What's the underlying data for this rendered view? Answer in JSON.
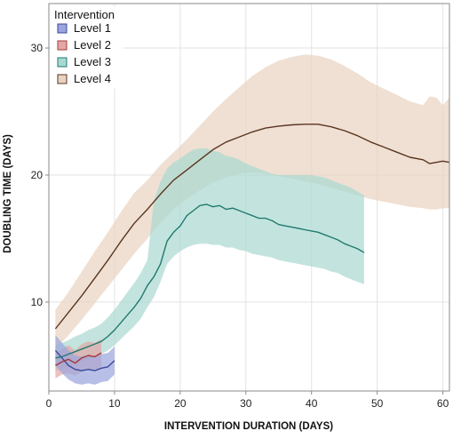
{
  "chart_data": {
    "type": "line",
    "title": "",
    "xlabel": "INTERVENTION DURATION (DAYS)",
    "ylabel": "DOUBLING TIME (DAYS)",
    "xlim": [
      0,
      61
    ],
    "ylim": [
      3,
      33.5
    ],
    "x_ticks": [
      0,
      10,
      20,
      30,
      40,
      50,
      60
    ],
    "y_ticks": [
      10,
      20,
      30
    ],
    "grid": true,
    "legend": {
      "title": "Intervention",
      "placement": "top-left"
    },
    "series": [
      {
        "name": "Level 1",
        "color": "#3b4a9a",
        "band_color": "#9aa4dd",
        "x": [
          1,
          2,
          3,
          4,
          5,
          6,
          7,
          8,
          9,
          10
        ],
        "y": [
          6.2,
          5.6,
          5.0,
          4.7,
          4.6,
          4.7,
          4.6,
          4.8,
          4.9,
          5.4
        ],
        "lower": [
          5.0,
          4.4,
          3.9,
          3.6,
          3.5,
          3.6,
          3.5,
          3.7,
          3.8,
          4.3
        ],
        "upper": [
          7.4,
          6.8,
          6.2,
          5.8,
          5.7,
          5.8,
          5.7,
          5.9,
          6.0,
          6.5
        ]
      },
      {
        "name": "Level 2",
        "color": "#a43a3a",
        "band_color": "#e3a7a7",
        "x": [
          1,
          2,
          3,
          4,
          5,
          6,
          7,
          8
        ],
        "y": [
          5.0,
          5.3,
          5.5,
          5.2,
          5.6,
          5.8,
          5.7,
          6.0
        ],
        "lower": [
          4.0,
          4.3,
          4.4,
          4.2,
          4.5,
          4.7,
          4.6,
          4.9
        ],
        "upper": [
          6.0,
          6.3,
          6.6,
          6.2,
          6.7,
          6.9,
          6.8,
          7.1
        ]
      },
      {
        "name": "Level 3",
        "color": "#1f7a70",
        "band_color": "#a9d9d0",
        "x": [
          1,
          2,
          3,
          4,
          5,
          6,
          7,
          8,
          9,
          10,
          11,
          12,
          13,
          14,
          15,
          16,
          17,
          18,
          19,
          20,
          21,
          22,
          23,
          24,
          25,
          26,
          27,
          28,
          29,
          30,
          31,
          32,
          33,
          34,
          35,
          36,
          37,
          38,
          39,
          40,
          41,
          42,
          43,
          44,
          45,
          46,
          47,
          48
        ],
        "y": [
          5.6,
          5.7,
          5.9,
          6.1,
          6.3,
          6.5,
          6.7,
          6.9,
          7.3,
          7.8,
          8.4,
          9.0,
          9.6,
          10.3,
          11.3,
          12.0,
          13.0,
          14.8,
          15.5,
          16.0,
          16.8,
          17.2,
          17.6,
          17.7,
          17.5,
          17.6,
          17.3,
          17.4,
          17.2,
          17.0,
          16.8,
          16.6,
          16.6,
          16.4,
          16.1,
          16.0,
          15.9,
          15.8,
          15.7,
          15.6,
          15.5,
          15.3,
          15.1,
          14.9,
          14.6,
          14.4,
          14.2,
          13.9
        ],
        "lower": [
          4.6,
          4.7,
          4.9,
          5.1,
          5.3,
          5.5,
          5.7,
          5.9,
          6.2,
          6.6,
          7.1,
          7.6,
          8.1,
          8.7,
          9.6,
          10.4,
          11.6,
          13.0,
          13.6,
          14.0,
          14.3,
          14.5,
          14.6,
          14.6,
          14.5,
          14.5,
          14.3,
          14.3,
          14.1,
          14.0,
          13.8,
          13.7,
          13.6,
          13.5,
          13.3,
          13.2,
          13.1,
          13.0,
          12.9,
          12.8,
          12.7,
          12.6,
          12.4,
          12.3,
          12.0,
          11.8,
          11.6,
          11.4
        ],
        "upper": [
          6.6,
          6.8,
          7.0,
          7.3,
          7.5,
          7.8,
          8.0,
          8.3,
          8.8,
          9.4,
          10.1,
          10.8,
          11.5,
          12.3,
          13.3,
          18.0,
          19.5,
          20.5,
          21.0,
          21.3,
          21.7,
          22.0,
          22.1,
          22.1,
          21.9,
          21.8,
          21.5,
          21.4,
          21.2,
          20.9,
          20.7,
          20.5,
          20.3,
          20.1,
          20.0,
          20.0,
          20.0,
          20.0,
          20.0,
          20.0,
          19.9,
          19.8,
          19.6,
          19.4,
          19.2,
          19.0,
          18.7,
          18.4
        ]
      },
      {
        "name": "Level 4",
        "color": "#5a3520",
        "band_color": "#e8d3c0",
        "x": [
          1,
          3,
          5,
          7,
          9,
          11,
          13,
          15,
          17,
          19,
          21,
          23,
          25,
          27,
          29,
          31,
          33,
          35,
          37,
          39,
          41,
          43,
          45,
          47,
          49,
          51,
          53,
          55,
          57,
          58,
          59,
          60,
          61
        ],
        "y": [
          7.9,
          9.2,
          10.5,
          11.9,
          13.3,
          14.8,
          16.2,
          17.3,
          18.5,
          19.6,
          20.4,
          21.2,
          22.0,
          22.6,
          23.0,
          23.4,
          23.7,
          23.85,
          23.95,
          24.0,
          24.0,
          23.8,
          23.5,
          23.1,
          22.6,
          22.2,
          21.8,
          21.4,
          21.2,
          20.9,
          21.0,
          21.1,
          21.0
        ],
        "lower": [
          6.3,
          7.4,
          8.6,
          9.9,
          11.2,
          12.5,
          13.8,
          15.0,
          16.2,
          17.3,
          18.1,
          18.8,
          19.4,
          19.8,
          20.1,
          20.2,
          20.1,
          19.9,
          19.7,
          19.5,
          19.3,
          19.0,
          18.7,
          18.4,
          18.1,
          17.9,
          17.7,
          17.5,
          17.4,
          17.3,
          17.3,
          17.4,
          17.4
        ],
        "upper": [
          9.4,
          10.8,
          12.4,
          14.0,
          15.5,
          17.1,
          18.6,
          19.6,
          20.8,
          21.8,
          22.8,
          23.9,
          25.0,
          26.0,
          26.9,
          27.8,
          28.5,
          29.0,
          29.3,
          29.5,
          29.4,
          29.1,
          28.6,
          28.0,
          27.3,
          26.8,
          26.3,
          25.8,
          25.5,
          26.2,
          26.1,
          25.5,
          26.1
        ]
      }
    ]
  }
}
